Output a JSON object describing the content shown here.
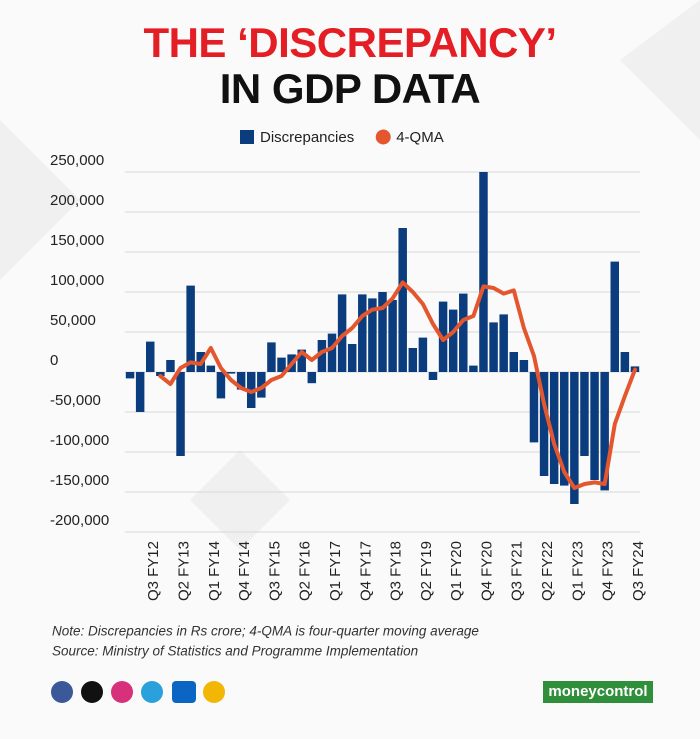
{
  "chart_data": {
    "type": "bar-line",
    "title_lines": [
      "THE ‘DISCREPANCY’",
      "IN GDP DATA"
    ],
    "categories": [
      null,
      null,
      "Q3 FY12",
      null,
      null,
      "Q2 FY13",
      null,
      null,
      "Q1 FY14",
      null,
      null,
      "Q4 FY14",
      null,
      null,
      "Q3 FY15",
      null,
      null,
      "Q2 FY16",
      null,
      null,
      "Q1 FY17",
      null,
      null,
      "Q4 FY17",
      null,
      null,
      "Q3 FY18",
      null,
      null,
      "Q2 FY19",
      null,
      null,
      "Q1 FY20",
      null,
      null,
      "Q4 FY20",
      null,
      null,
      "Q3 FY21",
      null,
      null,
      "Q2 FY22",
      null,
      null,
      "Q1 FY23",
      null,
      null,
      "Q4 FY23",
      null,
      null,
      "Q3 FY24"
    ],
    "series": [
      {
        "name": "Discrepancies",
        "color": "#0b3c7d",
        "kind": "bar",
        "values": [
          -8000,
          -50000,
          38000,
          -5000,
          15000,
          -105000,
          108000,
          25000,
          8000,
          -33000,
          -2000,
          -22000,
          -45000,
          -32000,
          37000,
          18000,
          22000,
          28000,
          -14000,
          40000,
          48000,
          97000,
          35000,
          97000,
          92000,
          100000,
          90000,
          180000,
          30000,
          43000,
          -10000,
          88000,
          78000,
          98000,
          8000,
          250000,
          62000,
          72000,
          25000,
          15000,
          -88000,
          -130000,
          -140000,
          -142000,
          -165000,
          -105000,
          -135000,
          -148000,
          138000,
          25000,
          7000
        ]
      },
      {
        "name": "4-QMA",
        "color": "#e4572e",
        "kind": "line",
        "values": [
          null,
          null,
          null,
          -5000,
          -15000,
          5000,
          12000,
          10000,
          30000,
          5000,
          -10000,
          -20000,
          -25000,
          -20000,
          -10000,
          -5000,
          10000,
          25000,
          15000,
          25000,
          30000,
          45000,
          55000,
          70000,
          78000,
          80000,
          92000,
          112000,
          100000,
          85000,
          60000,
          40000,
          50000,
          65000,
          70000,
          107000,
          105000,
          98000,
          102000,
          55000,
          20000,
          -40000,
          -90000,
          -125000,
          -145000,
          -140000,
          -138000,
          -140000,
          -65000,
          -30000,
          3000
        ]
      }
    ],
    "ylim": [
      -200000,
      250000
    ],
    "yticks": [
      {
        "value": -200000,
        "label": "-200,000"
      },
      {
        "value": -150000,
        "label": "-150,000"
      },
      {
        "value": -100000,
        "label": "-100,000"
      },
      {
        "value": -50000,
        "label": "-50,000"
      },
      0,
      {
        "value": 50000,
        "label": "50,000"
      },
      {
        "value": 100000,
        "label": "100,000"
      },
      {
        "value": 150000,
        "label": "150,000"
      },
      {
        "value": 200000,
        "label": "200,000"
      },
      {
        "value": 250000,
        "label": "250,000"
      }
    ],
    "grid": true,
    "legend": "top",
    "notes": [
      "Note: Discrepancies in Rs crore; 4-QMA is four-quarter moving average",
      "Source: Ministry of Statistics and Programme Implementation"
    ]
  },
  "brand": "moneycontrol"
}
